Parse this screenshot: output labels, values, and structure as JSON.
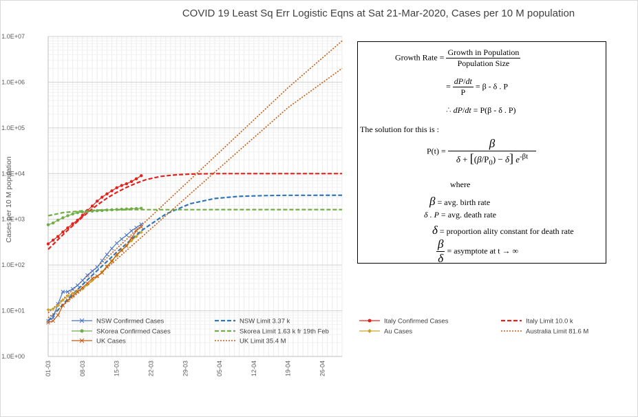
{
  "chart_data": {
    "type": "line",
    "title": "COVID 19 Least Sq Err Logistic Eqns at Sat 21-Mar-2020, Cases per 10 M population",
    "ylabel": "Cases per 10 M population",
    "yscale": "log",
    "ylim": [
      1,
      10000000
    ],
    "y_tick_labels": [
      "1.0E+00",
      "1.0E+01",
      "1.0E+02",
      "1.0E+03",
      "1.0E+04",
      "1.0E+05",
      "1.0E+06",
      "1.0E+07"
    ],
    "x_day_range": [
      1,
      61
    ],
    "x_tick_labels": [
      "01-03",
      "08-03",
      "15-03",
      "22-03",
      "29-03",
      "05-04",
      "12-04",
      "19-04",
      "26-04"
    ],
    "x_tick_days": [
      1,
      8,
      15,
      22,
      29,
      36,
      43,
      50,
      57
    ],
    "grid": true,
    "legend_position": "bottom",
    "series": [
      {
        "name": "NSW Confirmed Cases",
        "color": "#4472c4",
        "style": "solid",
        "marker": "x",
        "points": [
          [
            1,
            6
          ],
          [
            2,
            7
          ],
          [
            3,
            14
          ],
          [
            4,
            26
          ],
          [
            5,
            26
          ],
          [
            6,
            30
          ],
          [
            7,
            36
          ],
          [
            8,
            46
          ],
          [
            9,
            60
          ],
          [
            10,
            74
          ],
          [
            11,
            90
          ],
          [
            12,
            125
          ],
          [
            13,
            170
          ],
          [
            14,
            230
          ],
          [
            15,
            300
          ],
          [
            16,
            370
          ],
          [
            17,
            450
          ],
          [
            18,
            560
          ],
          [
            19,
            660
          ],
          [
            20,
            780
          ]
        ]
      },
      {
        "name": "NSW Limit 3.37 k",
        "color": "#2e75b6",
        "style": "dash",
        "points": [
          [
            1,
            6
          ],
          [
            5,
            18
          ],
          [
            10,
            60
          ],
          [
            15,
            190
          ],
          [
            20,
            560
          ],
          [
            25,
            1300
          ],
          [
            30,
            2200
          ],
          [
            35,
            2850
          ],
          [
            40,
            3180
          ],
          [
            45,
            3300
          ],
          [
            50,
            3350
          ],
          [
            55,
            3360
          ],
          [
            61,
            3370
          ]
        ]
      },
      {
        "name": "Italy Confirmed Cases",
        "color": "#e3211c",
        "style": "solid",
        "marker": "dot",
        "points": [
          [
            1,
            290
          ],
          [
            2,
            350
          ],
          [
            3,
            420
          ],
          [
            4,
            530
          ],
          [
            5,
            650
          ],
          [
            6,
            800
          ],
          [
            7,
            960
          ],
          [
            8,
            1220
          ],
          [
            9,
            1560
          ],
          [
            10,
            1950
          ],
          [
            11,
            2500
          ],
          [
            12,
            3050
          ],
          [
            13,
            3600
          ],
          [
            14,
            4200
          ],
          [
            15,
            4900
          ],
          [
            16,
            5500
          ],
          [
            17,
            6000
          ],
          [
            18,
            6700
          ],
          [
            19,
            7700
          ],
          [
            20,
            9000
          ]
        ]
      },
      {
        "name": "Italy Limit 10.0 k",
        "color": "#e3211c",
        "style": "dash",
        "points": [
          [
            1,
            220
          ],
          [
            3,
            360
          ],
          [
            5,
            580
          ],
          [
            7,
            900
          ],
          [
            9,
            1380
          ],
          [
            11,
            2050
          ],
          [
            13,
            2900
          ],
          [
            15,
            3900
          ],
          [
            17,
            5000
          ],
          [
            19,
            6200
          ],
          [
            21,
            7400
          ],
          [
            24,
            8700
          ],
          [
            27,
            9400
          ],
          [
            30,
            9800
          ],
          [
            35,
            9980
          ],
          [
            61,
            10000
          ]
        ]
      },
      {
        "name": "SKorea Confirmed Cases",
        "color": "#70ad47",
        "style": "solid",
        "marker": "dot",
        "points": [
          [
            1,
            760
          ],
          [
            2,
            830
          ],
          [
            3,
            960
          ],
          [
            4,
            1080
          ],
          [
            5,
            1200
          ],
          [
            6,
            1310
          ],
          [
            7,
            1400
          ],
          [
            8,
            1440
          ],
          [
            9,
            1480
          ],
          [
            10,
            1510
          ],
          [
            11,
            1540
          ],
          [
            12,
            1560
          ],
          [
            13,
            1600
          ],
          [
            14,
            1620
          ],
          [
            15,
            1640
          ],
          [
            16,
            1660
          ],
          [
            17,
            1680
          ],
          [
            18,
            1700
          ],
          [
            19,
            1720
          ],
          [
            20,
            1740
          ]
        ]
      },
      {
        "name": "Skorea Limit 1.63 k fr 19th Feb",
        "color": "#70ad47",
        "style": "dash",
        "points": [
          [
            1,
            1200
          ],
          [
            4,
            1400
          ],
          [
            8,
            1530
          ],
          [
            12,
            1600
          ],
          [
            18,
            1625
          ],
          [
            61,
            1630
          ]
        ]
      },
      {
        "name": "Au Cases",
        "color": "#c9a227",
        "style": "solid",
        "marker": "diamond",
        "points": [
          [
            1,
            10.5
          ],
          [
            2,
            11
          ],
          [
            3,
            13
          ],
          [
            4,
            17
          ],
          [
            5,
            21
          ],
          [
            6,
            24
          ],
          [
            7,
            27
          ],
          [
            8,
            30
          ],
          [
            9,
            37
          ],
          [
            10,
            46
          ],
          [
            11,
            56
          ],
          [
            12,
            71
          ],
          [
            13,
            94
          ],
          [
            14,
            125
          ],
          [
            15,
            160
          ],
          [
            16,
            210
          ],
          [
            17,
            270
          ],
          [
            18,
            340
          ],
          [
            19,
            420
          ],
          [
            20,
            520
          ]
        ]
      },
      {
        "name": "Australia Limit 81.6 M",
        "color": "#c55a11",
        "style": "dot",
        "points": [
          [
            1,
            7
          ],
          [
            10,
            45
          ],
          [
            20,
            400
          ],
          [
            30,
            3600
          ],
          [
            40,
            32000
          ],
          [
            50,
            280000
          ],
          [
            61,
            2000000
          ]
        ]
      },
      {
        "name": "UK Cases",
        "color": "#c55a11",
        "style": "solid",
        "marker": "x",
        "points": [
          [
            1,
            5.5
          ],
          [
            2,
            6
          ],
          [
            3,
            8
          ],
          [
            4,
            13
          ],
          [
            5,
            17
          ],
          [
            6,
            21
          ],
          [
            7,
            26
          ],
          [
            8,
            32
          ],
          [
            9,
            40
          ],
          [
            10,
            51
          ],
          [
            11,
            57
          ],
          [
            12,
            68
          ],
          [
            13,
            92
          ],
          [
            14,
            120
          ],
          [
            15,
            170
          ],
          [
            16,
            210
          ],
          [
            17,
            260
          ],
          [
            18,
            390
          ],
          [
            19,
            560
          ],
          [
            20,
            680
          ]
        ]
      },
      {
        "name": "UK Limit 35.4 M",
        "color": "#c55a11",
        "style": "dot",
        "points": [
          [
            1,
            9
          ],
          [
            10,
            72
          ],
          [
            20,
            730
          ],
          [
            30,
            7400
          ],
          [
            40,
            75000
          ],
          [
            50,
            760000
          ],
          [
            61,
            8000000
          ]
        ]
      }
    ]
  },
  "formula": {
    "growth_rate": "Growth Rate",
    "growth_in_population": "Growth  in Population",
    "population_size": "Population  Size",
    "dP": "dP",
    "dt": "dt",
    "P": "P",
    "beta": "β",
    "delta": "δ",
    "eq_rhs1": "= β  -  δ . P",
    "eq_rhs2": "=  P(β - δ . P)",
    "solution_intro": "The  solution for this is :",
    "pt": "P(t) =",
    "P0": "P",
    "P0_sub": "0",
    "exp": "-βt",
    "where": "where",
    "birth_rate": "= avg.  birth  rate",
    "death_rate_lhs": "δ . P",
    "death_rate": "= avg.  death  rate",
    "prop_const": "= proportion ality  constant  for death  rate",
    "asymptote": "= asymptote  at t  → ∞",
    "therefore": "∴"
  }
}
